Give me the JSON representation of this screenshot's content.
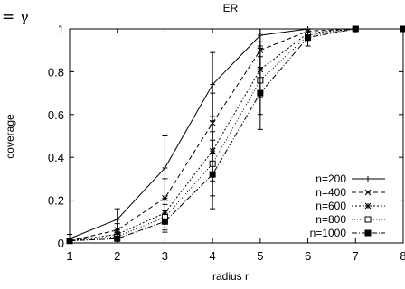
{
  "chart_data": {
    "type": "line",
    "title": "ER",
    "xlabel": "radius r",
    "ylabel": "coverage",
    "corner_annotation": "= γ",
    "xlim": [
      1,
      8
    ],
    "ylim": [
      0,
      1
    ],
    "xticks": [
      "1",
      "2",
      "3",
      "4",
      "5",
      "6",
      "7",
      "8"
    ],
    "yticks": [
      "0",
      "0.2",
      "0.4",
      "0.6",
      "0.8",
      "1"
    ],
    "grid": false,
    "legend_position": "bottom-right",
    "x": [
      1,
      2,
      3,
      4,
      5,
      6,
      7,
      8
    ],
    "series": [
      {
        "name": "n=200",
        "marker": "plus",
        "dash": "solid",
        "values": [
          0.02,
          0.11,
          0.35,
          0.74,
          0.97,
          1.0,
          1.0,
          1.0
        ],
        "error_low": [
          0.0,
          0.06,
          0.2,
          0.59,
          0.91,
          1.0,
          1.0,
          1.0
        ],
        "error_high": [
          0.04,
          0.16,
          0.5,
          0.89,
          1.0,
          1.0,
          1.0,
          1.0
        ]
      },
      {
        "name": "n=400",
        "marker": "cross",
        "dash": "dashed",
        "values": [
          0.01,
          0.06,
          0.21,
          0.56,
          0.9,
          0.99,
          1.0,
          1.0
        ],
        "error_low": [
          0.0,
          0.03,
          0.12,
          0.42,
          0.82,
          0.97,
          1.0,
          1.0
        ],
        "error_high": [
          0.02,
          0.09,
          0.3,
          0.7,
          0.98,
          1.0,
          1.0,
          1.0
        ]
      },
      {
        "name": "n=600",
        "marker": "star",
        "dash": "dotted",
        "values": [
          0.01,
          0.04,
          0.14,
          0.43,
          0.81,
          0.98,
          1.0,
          1.0
        ],
        "error_low": [
          0.0,
          0.02,
          0.07,
          0.29,
          0.68,
          0.95,
          1.0,
          1.0
        ],
        "error_high": [
          0.02,
          0.06,
          0.21,
          0.57,
          0.94,
          1.0,
          1.0,
          1.0
        ]
      },
      {
        "name": "n=800",
        "marker": "square-open",
        "dash": "fine-dotted",
        "values": [
          0.01,
          0.03,
          0.12,
          0.37,
          0.76,
          0.97,
          1.0,
          1.0
        ],
        "error_low": [
          0.0,
          0.01,
          0.06,
          0.22,
          0.6,
          0.94,
          1.0,
          1.0
        ],
        "error_high": [
          0.02,
          0.05,
          0.18,
          0.52,
          0.92,
          1.0,
          1.0,
          1.0
        ]
      },
      {
        "name": "n=1000",
        "marker": "square-filled",
        "dash": "dash-dot",
        "values": [
          0.01,
          0.02,
          0.1,
          0.32,
          0.7,
          0.96,
          1.0,
          1.0
        ],
        "error_low": [
          0.0,
          0.01,
          0.05,
          0.16,
          0.53,
          0.92,
          1.0,
          1.0
        ],
        "error_high": [
          0.02,
          0.04,
          0.15,
          0.48,
          0.87,
          1.0,
          1.0,
          1.0
        ]
      }
    ]
  }
}
